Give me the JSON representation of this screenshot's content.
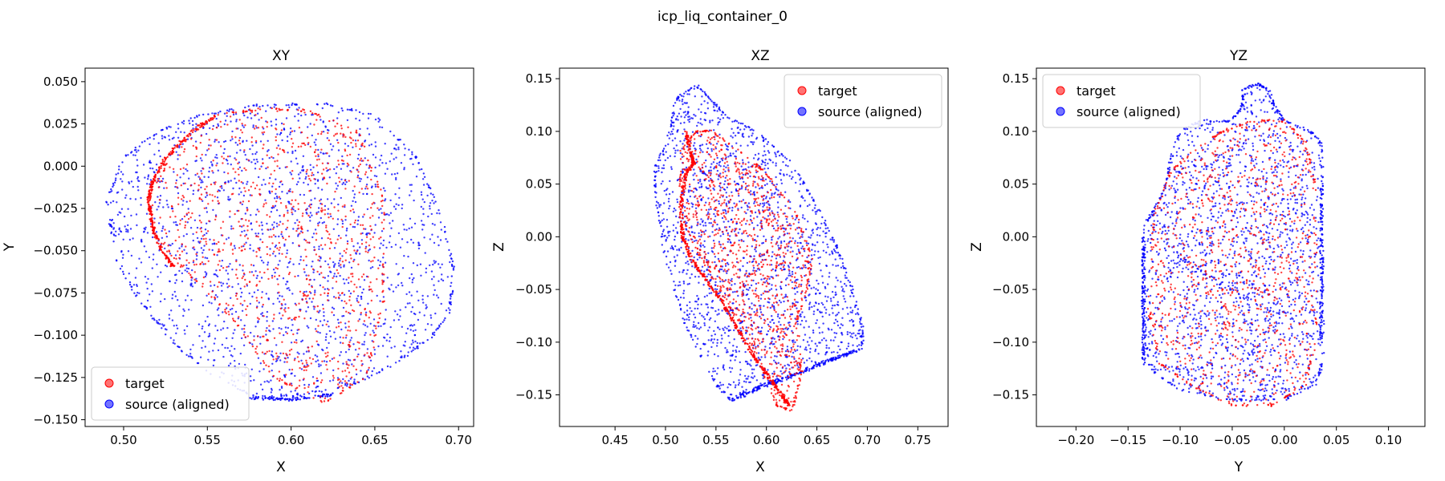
{
  "figure_title": "icp_liq_container_0",
  "colors": {
    "target": "#ff0000",
    "source": "#0000ff"
  },
  "chart_data": [
    {
      "type": "scatter",
      "title": "XY",
      "xlabel": "X",
      "ylabel": "Y",
      "xlim": [
        0.477,
        0.709
      ],
      "ylim": [
        -0.154,
        0.058
      ],
      "xticks": [
        0.5,
        0.55,
        0.6,
        0.65,
        0.7
      ],
      "xtick_labels": [
        "0.50",
        "0.55",
        "0.60",
        "0.65",
        "0.70"
      ],
      "yticks": [
        0.05,
        0.025,
        0.0,
        -0.025,
        -0.05,
        -0.075,
        -0.1,
        -0.125,
        -0.15
      ],
      "ytick_labels": [
        "0.050",
        "0.025",
        "0.000",
        "−0.025",
        "−0.050",
        "−0.075",
        "−0.100",
        "−0.125",
        "−0.150"
      ],
      "legend": {
        "position": "lower-left",
        "entries": [
          "target",
          "source (aligned)"
        ]
      },
      "series": [
        {
          "name": "target",
          "color": "#ff0000",
          "outline": [
            [
              0.515,
              -0.02
            ],
            [
              0.53,
              0.01
            ],
            [
              0.555,
              0.03
            ],
            [
              0.58,
              0.034
            ],
            [
              0.61,
              0.033
            ],
            [
              0.64,
              0.02
            ],
            [
              0.655,
              -0.02
            ],
            [
              0.655,
              -0.08
            ],
            [
              0.645,
              -0.125
            ],
            [
              0.62,
              -0.14
            ],
            [
              0.59,
              -0.125
            ],
            [
              0.565,
              -0.09
            ],
            [
              0.535,
              -0.06
            ],
            [
              0.518,
              -0.04
            ]
          ],
          "dense_edge": [
            [
              0.555,
              0.03
            ],
            [
              0.54,
              0.02
            ],
            [
              0.525,
              0.005
            ],
            [
              0.517,
              -0.01
            ],
            [
              0.515,
              -0.02
            ],
            [
              0.517,
              -0.035
            ],
            [
              0.523,
              -0.05
            ],
            [
              0.53,
              -0.06
            ]
          ],
          "count": 900
        },
        {
          "name": "source (aligned)",
          "color": "#0000ff",
          "outline": [
            [
              0.49,
              -0.02
            ],
            [
              0.5,
              0.005
            ],
            [
              0.52,
              0.02
            ],
            [
              0.545,
              0.03
            ],
            [
              0.58,
              0.036
            ],
            [
              0.62,
              0.037
            ],
            [
              0.65,
              0.03
            ],
            [
              0.675,
              0.005
            ],
            [
              0.69,
              -0.03
            ],
            [
              0.697,
              -0.06
            ],
            [
              0.695,
              -0.085
            ],
            [
              0.685,
              -0.1
            ],
            [
              0.665,
              -0.115
            ],
            [
              0.64,
              -0.128
            ],
            [
              0.61,
              -0.135
            ],
            [
              0.58,
              -0.137
            ],
            [
              0.555,
              -0.125
            ],
            [
              0.53,
              -0.105
            ],
            [
              0.51,
              -0.08
            ],
            [
              0.495,
              -0.055
            ]
          ],
          "dense_edge": [
            [
              0.575,
              -0.137
            ],
            [
              0.6,
              -0.138
            ],
            [
              0.625,
              -0.135
            ]
          ],
          "count": 1700
        }
      ]
    },
    {
      "type": "scatter",
      "title": "XZ",
      "xlabel": "X",
      "ylabel": "Z",
      "xlim": [
        0.395,
        0.78
      ],
      "ylim": [
        -0.18,
        0.16
      ],
      "xticks": [
        0.45,
        0.5,
        0.55,
        0.6,
        0.65,
        0.7,
        0.75
      ],
      "xtick_labels": [
        "0.45",
        "0.50",
        "0.55",
        "0.60",
        "0.65",
        "0.70",
        "0.75"
      ],
      "yticks": [
        0.15,
        0.1,
        0.05,
        0.0,
        -0.05,
        -0.1,
        -0.15
      ],
      "ytick_labels": [
        "0.15",
        "0.10",
        "0.05",
        "0.00",
        "−0.05",
        "−0.10",
        "−0.15"
      ],
      "legend": {
        "position": "upper-right",
        "entries": [
          "target",
          "source (aligned)"
        ]
      },
      "series": [
        {
          "name": "target",
          "color": "#ff0000",
          "outline": [
            [
              0.515,
              0.08
            ],
            [
              0.53,
              0.1
            ],
            [
              0.545,
              0.1
            ],
            [
              0.575,
              0.08
            ],
            [
              0.6,
              0.06
            ],
            [
              0.63,
              0.02
            ],
            [
              0.645,
              -0.02
            ],
            [
              0.64,
              -0.05
            ],
            [
              0.63,
              -0.08
            ],
            [
              0.635,
              -0.13
            ],
            [
              0.625,
              -0.165
            ],
            [
              0.61,
              -0.16
            ],
            [
              0.59,
              -0.11
            ],
            [
              0.56,
              -0.06
            ],
            [
              0.535,
              -0.02
            ],
            [
              0.515,
              0.02
            ]
          ],
          "dense_edge": [
            [
              0.52,
              0.1
            ],
            [
              0.525,
              0.08
            ],
            [
              0.528,
              0.07
            ],
            [
              0.52,
              0.06
            ],
            [
              0.515,
              0.03
            ],
            [
              0.517,
              0.0
            ],
            [
              0.525,
              -0.02
            ],
            [
              0.54,
              -0.04
            ],
            [
              0.555,
              -0.06
            ],
            [
              0.57,
              -0.085
            ],
            [
              0.585,
              -0.11
            ],
            [
              0.6,
              -0.13
            ],
            [
              0.615,
              -0.15
            ],
            [
              0.622,
              -0.16
            ]
          ],
          "count": 900
        },
        {
          "name": "source (aligned)",
          "color": "#0000ff",
          "outline": [
            [
              0.51,
              0.13
            ],
            [
              0.53,
              0.145
            ],
            [
              0.545,
              0.13
            ],
            [
              0.56,
              0.115
            ],
            [
              0.59,
              0.1
            ],
            [
              0.625,
              0.07
            ],
            [
              0.65,
              0.03
            ],
            [
              0.67,
              -0.01
            ],
            [
              0.685,
              -0.05
            ],
            [
              0.695,
              -0.085
            ],
            [
              0.695,
              -0.105
            ],
            [
              0.67,
              -0.115
            ],
            [
              0.62,
              -0.135
            ],
            [
              0.58,
              -0.15
            ],
            [
              0.565,
              -0.155
            ],
            [
              0.55,
              -0.14
            ],
            [
              0.52,
              -0.085
            ],
            [
              0.5,
              -0.02
            ],
            [
              0.49,
              0.04
            ],
            [
              0.49,
              0.065
            ],
            [
              0.505,
              0.1
            ]
          ],
          "dense_edge": [
            [
              0.57,
              -0.152
            ],
            [
              0.6,
              -0.14
            ],
            [
              0.63,
              -0.13
            ],
            [
              0.66,
              -0.118
            ],
            [
              0.69,
              -0.108
            ]
          ],
          "count": 1700
        }
      ]
    },
    {
      "type": "scatter",
      "title": "YZ",
      "xlabel": "Y",
      "ylabel": "Z",
      "xlim": [
        -0.238,
        0.135
      ],
      "ylim": [
        -0.18,
        0.16
      ],
      "xticks": [
        -0.2,
        -0.15,
        -0.1,
        -0.05,
        0.0,
        0.05,
        0.1
      ],
      "xtick_labels": [
        "−0.20",
        "−0.15",
        "−0.10",
        "−0.05",
        "0.00",
        "0.05",
        "0.10"
      ],
      "yticks": [
        0.15,
        0.1,
        0.05,
        0.0,
        -0.05,
        -0.1,
        -0.15
      ],
      "ytick_labels": [
        "0.15",
        "0.10",
        "0.05",
        "0.00",
        "−0.05",
        "−0.10",
        "−0.15"
      ],
      "legend": {
        "position": "upper-left",
        "entries": [
          "target",
          "source (aligned)"
        ]
      },
      "series": [
        {
          "name": "target",
          "color": "#ff0000",
          "outline": [
            [
              -0.125,
              0.02
            ],
            [
              -0.11,
              0.06
            ],
            [
              -0.09,
              0.08
            ],
            [
              -0.06,
              0.1
            ],
            [
              -0.03,
              0.11
            ],
            [
              0.0,
              0.11
            ],
            [
              0.02,
              0.09
            ],
            [
              0.03,
              0.05
            ],
            [
              0.03,
              -0.1
            ],
            [
              0.02,
              -0.14
            ],
            [
              -0.01,
              -0.16
            ],
            [
              -0.05,
              -0.16
            ],
            [
              -0.09,
              -0.14
            ],
            [
              -0.12,
              -0.12
            ],
            [
              -0.13,
              -0.07
            ]
          ],
          "dense_edge": [],
          "count": 900
        },
        {
          "name": "source (aligned)",
          "color": "#0000ff",
          "outline": [
            [
              -0.135,
              0.01
            ],
            [
              -0.125,
              0.025
            ],
            [
              -0.115,
              0.045
            ],
            [
              -0.11,
              0.07
            ],
            [
              -0.1,
              0.1
            ],
            [
              -0.08,
              0.11
            ],
            [
              -0.05,
              0.11
            ],
            [
              -0.04,
              0.125
            ],
            [
              -0.04,
              0.14
            ],
            [
              -0.025,
              0.145
            ],
            [
              -0.015,
              0.14
            ],
            [
              -0.01,
              0.125
            ],
            [
              0.0,
              0.11
            ],
            [
              0.025,
              0.1
            ],
            [
              0.035,
              0.09
            ],
            [
              0.037,
              0.05
            ],
            [
              0.037,
              -0.12
            ],
            [
              0.03,
              -0.14
            ],
            [
              0.0,
              -0.155
            ],
            [
              -0.05,
              -0.155
            ],
            [
              -0.1,
              -0.145
            ],
            [
              -0.13,
              -0.125
            ],
            [
              -0.137,
              -0.07
            ]
          ],
          "dense_edge": [
            [
              -0.135,
              -0.12
            ],
            [
              -0.135,
              -0.08
            ],
            [
              -0.135,
              -0.04
            ],
            [
              -0.135,
              0.0
            ],
            [
              0.035,
              -0.1
            ],
            [
              0.036,
              -0.05
            ],
            [
              0.036,
              0.0
            ],
            [
              0.036,
              0.05
            ]
          ],
          "count": 1700
        }
      ]
    }
  ]
}
